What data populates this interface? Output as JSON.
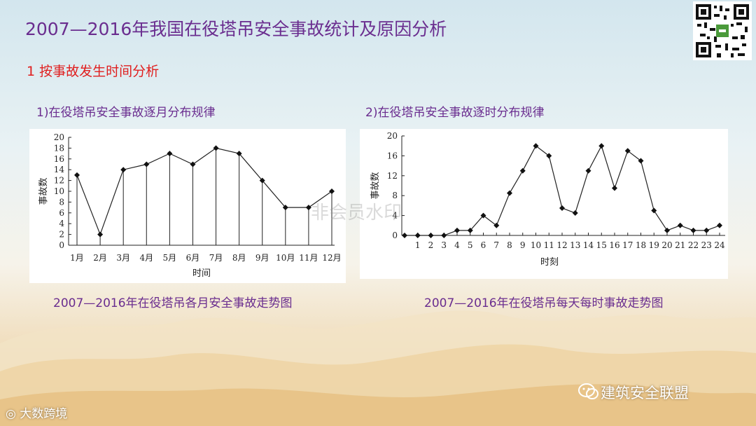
{
  "title": "2007—2016年我国在役塔吊安全事故统计及原因分析",
  "section": "1 按事故发生时间分析",
  "watermark": "非会员水印",
  "brand": "建筑安全联盟",
  "logo_text": "大数跨境",
  "icons": {
    "qr": "qr-code-icon",
    "wechat": "wechat-icon"
  },
  "chart_data": [
    {
      "type": "line",
      "subtitle": "1)在役塔吊安全事故逐月分布规律",
      "caption": "2007—2016年在役塔吊各月安全事故走势图",
      "xlabel": "时间",
      "ylabel": "事故数",
      "categories": [
        "1月",
        "2月",
        "3月",
        "4月",
        "5月",
        "6月",
        "7月",
        "8月",
        "9月",
        "10月",
        "11月",
        "12月"
      ],
      "values": [
        13,
        2,
        14,
        15,
        17,
        15,
        18,
        17,
        12,
        7,
        7,
        10
      ],
      "ylim": [
        0,
        20
      ],
      "yticks": [
        0,
        2,
        4,
        6,
        8,
        10,
        12,
        14,
        16,
        18,
        20
      ],
      "drop_lines": true
    },
    {
      "type": "line",
      "subtitle": "2)在役塔吊安全事故逐时分布规律",
      "caption": "2007—2016年在役塔吊每天每时事故走势图",
      "xlabel": "时刻",
      "ylabel": "事故数",
      "categories": [
        "0",
        "1",
        "2",
        "3",
        "4",
        "5",
        "6",
        "7",
        "8",
        "9",
        "10",
        "11",
        "12",
        "13",
        "14",
        "15",
        "16",
        "17",
        "18",
        "19",
        "20",
        "21",
        "22",
        "23",
        "24"
      ],
      "x_ticks_shown": [
        "1",
        "2",
        "3",
        "4",
        "5",
        "6",
        "7",
        "8",
        "9",
        "10",
        "11",
        "12",
        "13",
        "14",
        "15",
        "16",
        "17",
        "18",
        "19",
        "20",
        "21",
        "22",
        "23",
        "24"
      ],
      "values": [
        0,
        0,
        0,
        0,
        1,
        1,
        4,
        2,
        8.5,
        13,
        18,
        16,
        5.5,
        4.5,
        13,
        18,
        9.5,
        17,
        15,
        5,
        1,
        2,
        1,
        1,
        2
      ],
      "ylim": [
        0,
        20
      ],
      "yticks": [
        0,
        4,
        8,
        12,
        16,
        20
      ]
    }
  ]
}
